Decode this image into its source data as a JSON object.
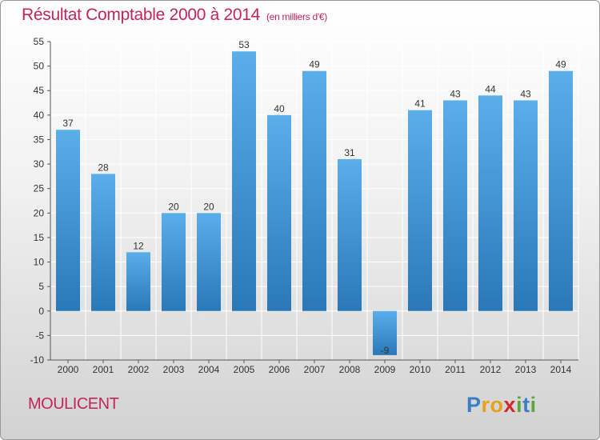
{
  "title": "Résultat Comptable 2000 à 2014",
  "subtitle": "(en milliers d'€)",
  "commune": "MOULICENT",
  "logo": {
    "letters": [
      "P",
      "r",
      "o",
      "x",
      "i",
      "t",
      "i"
    ],
    "colors": [
      "#3a7fc4",
      "#e8a21a",
      "#e8a21a",
      "#d4292b",
      "#5aa63c",
      "#3a7fc4",
      "#5aa63c"
    ]
  },
  "colors": {
    "bar_top": "#5aaeea",
    "bar_bottom": "#2a78b8",
    "title": "#c1255b",
    "grid": "#ffffff",
    "axis_text": "#333333"
  },
  "chart_data": {
    "type": "bar",
    "title": "Résultat Comptable 2000 à 2014",
    "subtitle": "(en milliers d'€)",
    "xlabel": "",
    "ylabel": "",
    "categories": [
      "2000",
      "2001",
      "2002",
      "2003",
      "2004",
      "2005",
      "2006",
      "2007",
      "2008",
      "2009",
      "2010",
      "2011",
      "2012",
      "2013",
      "2014"
    ],
    "values": [
      37,
      28,
      12,
      20,
      20,
      53,
      40,
      49,
      31,
      -9,
      41,
      43,
      44,
      43,
      49
    ],
    "ylim": [
      -10,
      55
    ],
    "yticks": [
      -10,
      -5,
      0,
      5,
      10,
      15,
      20,
      25,
      30,
      35,
      40,
      45,
      50,
      55
    ],
    "grid": true
  }
}
